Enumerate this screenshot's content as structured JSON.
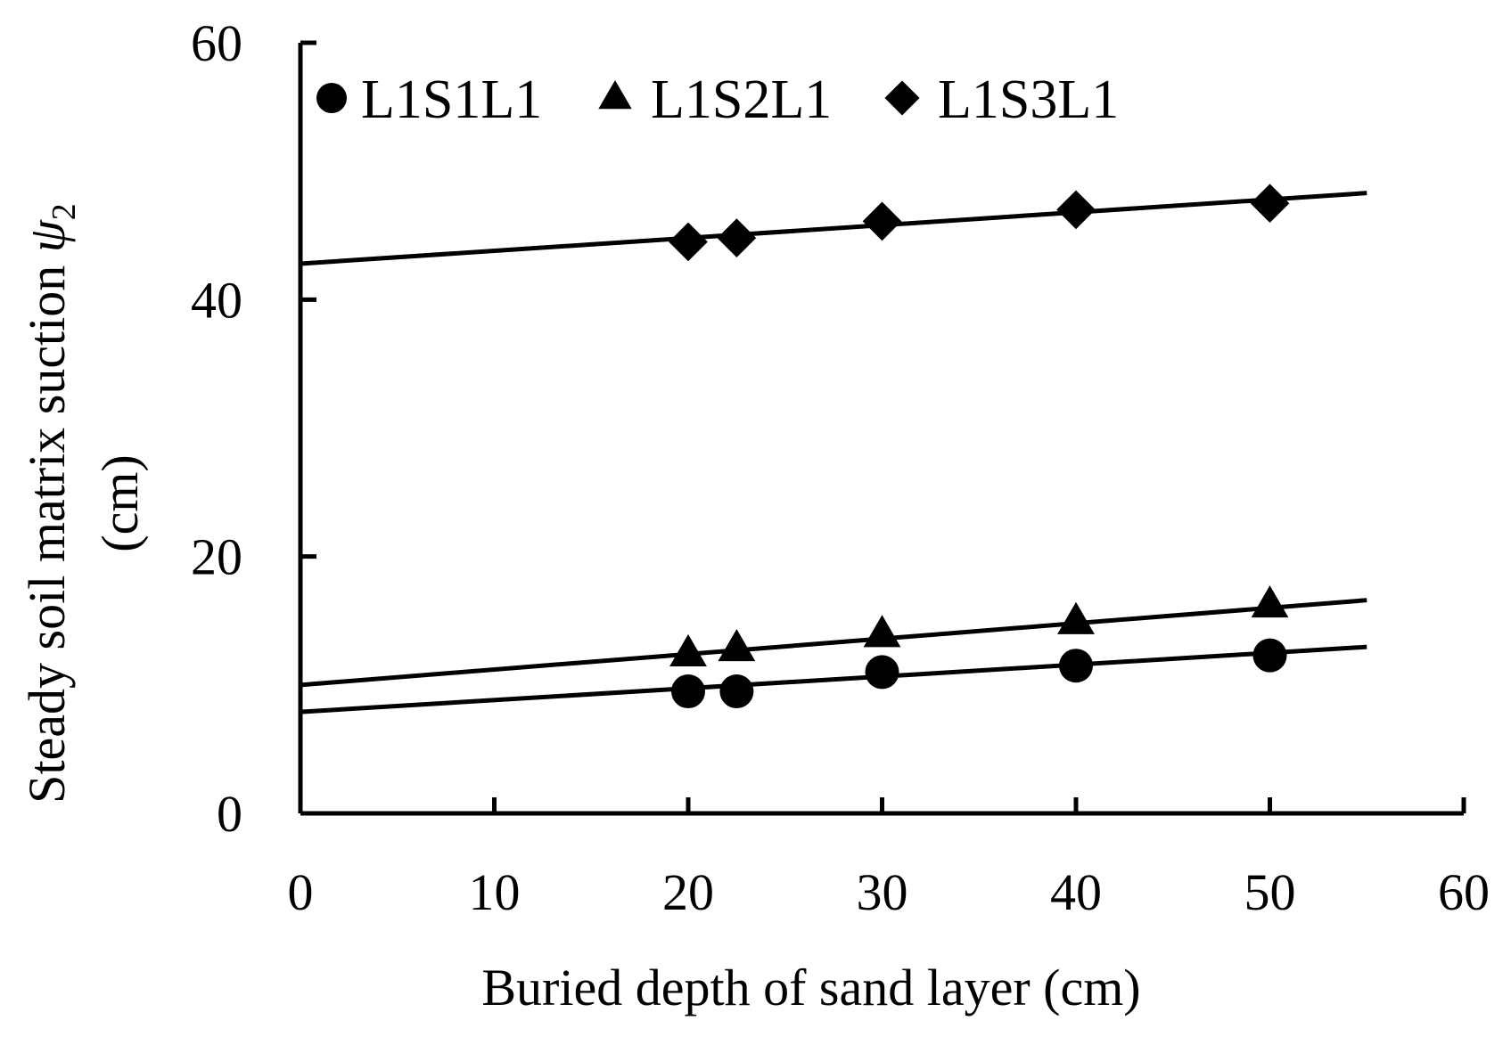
{
  "chart_data": {
    "type": "scatter",
    "title": "",
    "xlabel": "Buried depth of sand layer (cm)",
    "ylabel_line1_prefix": "Steady soil matrix suction ",
    "ylabel_symbol": "ψ",
    "ylabel_subscript": "2",
    "ylabel_line2": "(cm)",
    "xlim": [
      0,
      60
    ],
    "ylim": [
      0,
      60
    ],
    "x_ticks": [
      0,
      10,
      20,
      30,
      40,
      50,
      60
    ],
    "y_ticks": [
      0,
      20,
      40,
      60
    ],
    "grid": false,
    "legend_position": "top-left",
    "series": [
      {
        "name": "L1S1L1",
        "marker": "circle",
        "x": [
          20,
          22.5,
          30,
          40,
          50
        ],
        "y": [
          9.5,
          9.5,
          11,
          11.5,
          12.3
        ],
        "trend": {
          "intercept": 7.9,
          "slope": 0.092,
          "x_end": 55
        }
      },
      {
        "name": "L1S2L1",
        "marker": "triangle",
        "x": [
          20,
          22.5,
          30,
          40,
          50
        ],
        "y": [
          12.4,
          12.8,
          13.9,
          14.9,
          16.2
        ],
        "trend": {
          "intercept": 10.0,
          "slope": 0.12,
          "x_end": 55
        }
      },
      {
        "name": "L1S3L1",
        "marker": "diamond",
        "x": [
          20,
          22.5,
          30,
          40,
          50
        ],
        "y": [
          44.5,
          44.8,
          46.1,
          47.0,
          47.5
        ],
        "trend": {
          "intercept": 42.8,
          "slope": 0.1,
          "x_end": 55
        }
      }
    ]
  }
}
